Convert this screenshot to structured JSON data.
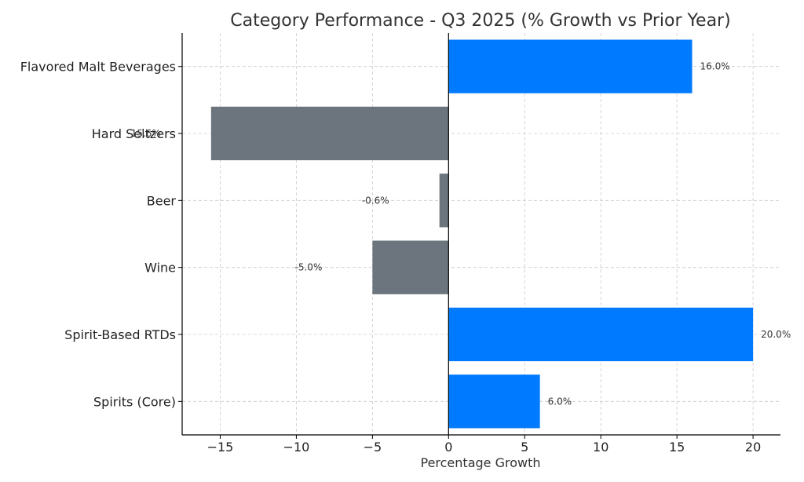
{
  "chart_data": {
    "type": "bar",
    "orientation": "horizontal",
    "title": "Category Performance - Q3 2025 (% Growth vs Prior Year)",
    "xlabel": "Percentage Growth",
    "ylabel": "",
    "categories": [
      "Flavored Malt Beverages",
      "Hard Seltzers",
      "Beer",
      "Wine",
      "Spirit-Based RTDs",
      "Spirits (Core)"
    ],
    "values": [
      16.0,
      -15.6,
      -0.6,
      -5.0,
      20.0,
      6.0
    ],
    "data_labels": [
      "16.0%",
      "-15.6%",
      "-0.6%",
      "-5.0%",
      "20.0%",
      "6.0%"
    ],
    "xlim": [
      -17.5,
      21.8
    ],
    "xticks": [
      -15,
      -10,
      -5,
      0,
      5,
      10,
      15,
      20
    ],
    "xtick_labels": [
      "−15",
      "−10",
      "−5",
      "0",
      "5",
      "10",
      "15",
      "20"
    ],
    "grid": true,
    "colors": {
      "positive": "#007bff",
      "negative": "#6c757d",
      "zero_line": "#000000"
    }
  }
}
